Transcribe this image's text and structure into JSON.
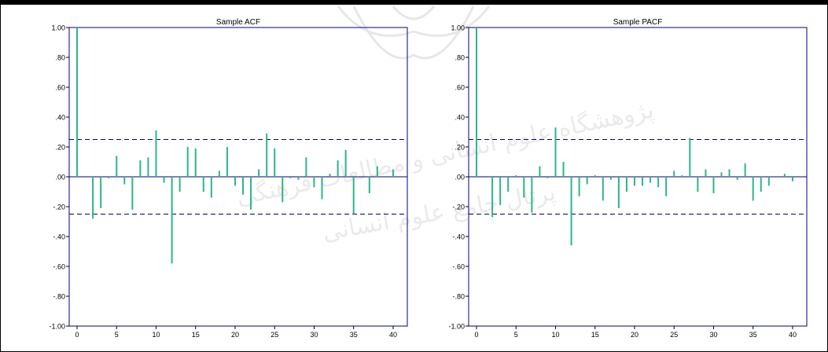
{
  "watermark": {
    "line1": "پژوهشگاه علوم انسانی و مطالعات فرهنگی",
    "line2": "پرتال جامع علوم انسانی"
  },
  "chart_data": [
    {
      "type": "bar",
      "title": "Sample ACF",
      "xlabel": "",
      "ylabel": "",
      "xlim": [
        0,
        41
      ],
      "ylim": [
        -1,
        1
      ],
      "x_ticks": [
        0,
        5,
        10,
        15,
        20,
        25,
        30,
        35,
        40
      ],
      "y_ticks": [
        1.0,
        0.8,
        0.6,
        0.4,
        0.2,
        0.0,
        -0.2,
        -0.4,
        -0.6,
        -0.8,
        -1.0
      ],
      "y_tick_labels": [
        "1.00",
        ".80",
        ".60",
        ".40",
        ".20",
        ".00",
        "-.20",
        "-.40",
        "-.60",
        "-.80",
        "-1.00"
      ],
      "confidence_band": 0.25,
      "bar_color": "#2bb58f",
      "band_color": "#000080",
      "lags": [
        0,
        1,
        2,
        3,
        4,
        5,
        6,
        7,
        8,
        9,
        10,
        11,
        12,
        13,
        14,
        15,
        16,
        17,
        18,
        19,
        20,
        21,
        22,
        23,
        24,
        25,
        26,
        27,
        28,
        29,
        30,
        31,
        32,
        33,
        34,
        35,
        36,
        37,
        38,
        39,
        40
      ],
      "values": [
        1.0,
        0.0,
        -0.28,
        -0.21,
        -0.01,
        0.14,
        -0.05,
        -0.22,
        0.11,
        0.13,
        0.31,
        -0.04,
        -0.58,
        -0.1,
        0.2,
        0.19,
        -0.1,
        -0.14,
        0.04,
        0.2,
        -0.06,
        -0.12,
        -0.22,
        0.05,
        0.29,
        0.19,
        -0.17,
        -0.01,
        -0.02,
        0.13,
        -0.07,
        -0.15,
        0.02,
        0.11,
        0.18,
        -0.25,
        0.0,
        -0.11,
        0.07,
        0.0,
        0.05
      ]
    },
    {
      "type": "bar",
      "title": "Sample PACF",
      "xlabel": "",
      "ylabel": "",
      "xlim": [
        0,
        41
      ],
      "ylim": [
        -1,
        1
      ],
      "x_ticks": [
        0,
        5,
        10,
        15,
        20,
        25,
        30,
        35,
        40
      ],
      "y_ticks": [
        1.0,
        0.8,
        0.6,
        0.4,
        0.2,
        0.0,
        -0.2,
        -0.4,
        -0.6,
        -0.8,
        -1.0
      ],
      "y_tick_labels": [
        "1.00",
        ".80",
        ".60",
        ".40",
        ".20",
        ".00",
        "-.20",
        "-.40",
        "-.60",
        "-.80",
        "-1.00"
      ],
      "confidence_band": 0.25,
      "bar_color": "#2bb58f",
      "band_color": "#000080",
      "lags": [
        0,
        1,
        2,
        3,
        4,
        5,
        6,
        7,
        8,
        9,
        10,
        11,
        12,
        13,
        14,
        15,
        16,
        17,
        18,
        19,
        20,
        21,
        22,
        23,
        24,
        25,
        26,
        27,
        28,
        29,
        30,
        31,
        32,
        33,
        34,
        35,
        36,
        37,
        38,
        39,
        40
      ],
      "values": [
        1.0,
        0.0,
        -0.27,
        -0.19,
        -0.1,
        0.01,
        -0.14,
        -0.24,
        0.07,
        -0.01,
        0.33,
        0.1,
        -0.46,
        -0.13,
        -0.05,
        0.01,
        -0.16,
        -0.02,
        -0.21,
        -0.1,
        -0.06,
        -0.06,
        -0.04,
        -0.07,
        -0.13,
        0.04,
        0.01,
        0.26,
        -0.1,
        0.05,
        -0.11,
        0.03,
        0.05,
        -0.02,
        0.09,
        -0.16,
        -0.1,
        -0.06,
        0.0,
        0.02,
        -0.03
      ]
    }
  ]
}
